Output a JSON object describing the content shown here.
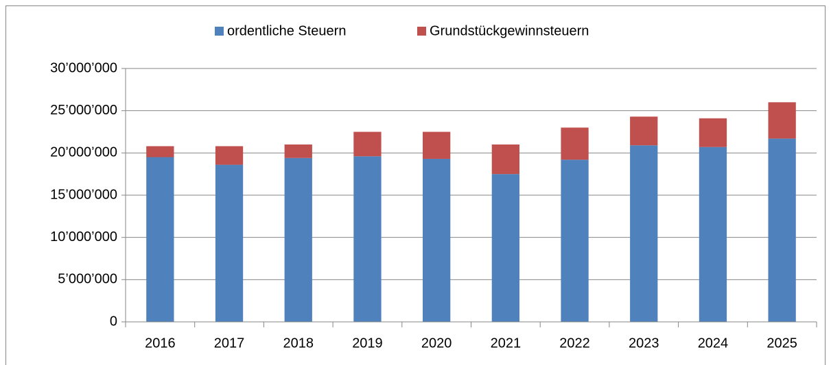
{
  "chart_data": {
    "type": "stacked_bar",
    "categories": [
      "2016",
      "2017",
      "2018",
      "2019",
      "2020",
      "2021",
      "2022",
      "2023",
      "2024",
      "2025"
    ],
    "series": [
      {
        "name": "ordentliche Steuern",
        "color": "#4f81bd",
        "values": [
          19500000,
          18600000,
          19400000,
          19600000,
          19300000,
          17500000,
          19200000,
          20900000,
          20700000,
          21700000
        ]
      },
      {
        "name": "Grundstückgewinnsteuern",
        "color": "#c0504d",
        "values": [
          1300000,
          2200000,
          1600000,
          2900000,
          3200000,
          3500000,
          3800000,
          3400000,
          3400000,
          4300000
        ]
      }
    ],
    "ylim": [
      0,
      30000000
    ],
    "yticks": [
      0,
      {
        "value": 5000000,
        "label": "5’000’000"
      },
      {
        "value": 10000000,
        "label": "10’000’000"
      },
      {
        "value": 15000000,
        "label": "15’000’000"
      },
      {
        "value": 20000000,
        "label": "20’000’000"
      },
      {
        "value": 25000000,
        "label": "25’000’000"
      },
      {
        "value": 30000000,
        "label": "30’000’000"
      }
    ],
    "grid": true,
    "legend": "top"
  }
}
